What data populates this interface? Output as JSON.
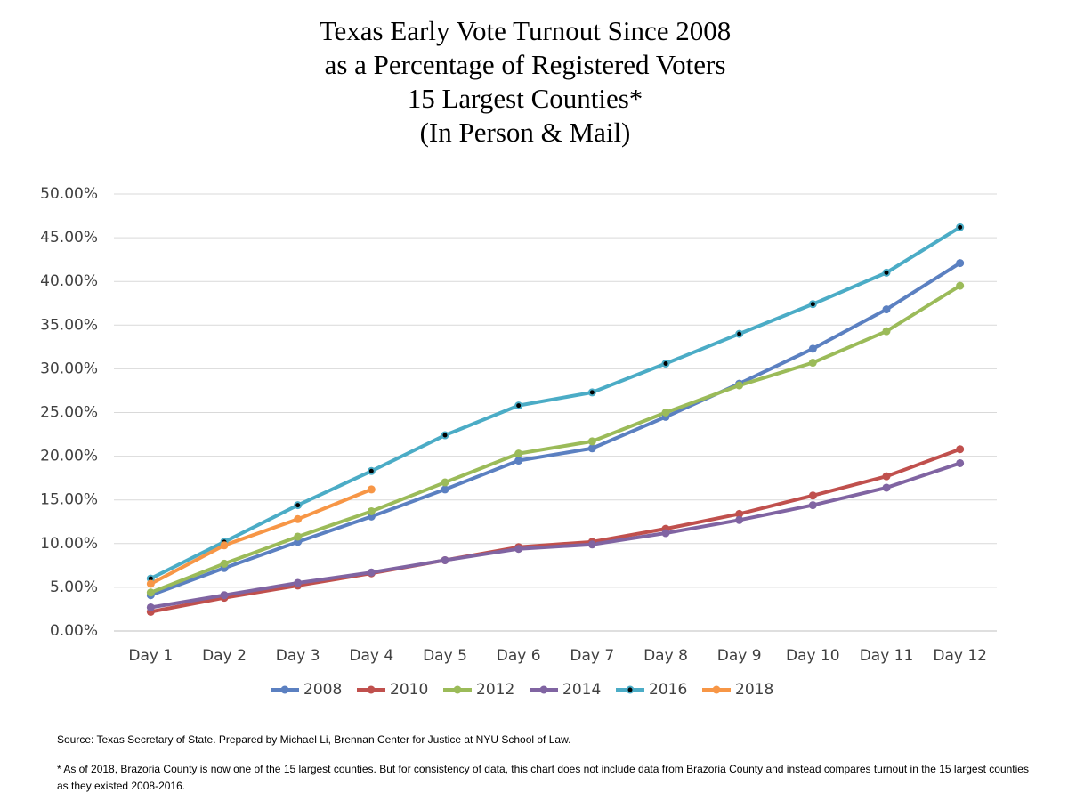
{
  "chart_data": {
    "type": "line",
    "title_lines": [
      "Texas Early Vote Turnout Since 2008",
      "as a Percentage of Registered Voters",
      "15 Largest Counties*",
      "(In Person & Mail)"
    ],
    "categories": [
      "Day 1",
      "Day 2",
      "Day 3",
      "Day 4",
      "Day 5",
      "Day 6",
      "Day 7",
      "Day 8",
      "Day 9",
      "Day 10",
      "Day 11",
      "Day 12"
    ],
    "series": [
      {
        "name": "2008",
        "color": "#5b80c1",
        "values": [
          4.1,
          7.2,
          10.2,
          13.1,
          16.2,
          19.5,
          20.9,
          24.5,
          28.3,
          32.3,
          36.8,
          42.1
        ]
      },
      {
        "name": "2010",
        "color": "#c0504d",
        "values": [
          2.2,
          3.8,
          5.2,
          6.6,
          8.1,
          9.6,
          10.2,
          11.7,
          13.4,
          15.5,
          17.7,
          20.8
        ]
      },
      {
        "name": "2012",
        "color": "#9bbb59",
        "values": [
          4.4,
          7.7,
          10.8,
          13.7,
          17.0,
          20.3,
          21.7,
          25.0,
          28.1,
          30.7,
          34.3,
          39.5
        ]
      },
      {
        "name": "2014",
        "color": "#8064a2",
        "values": [
          2.7,
          4.1,
          5.5,
          6.7,
          8.1,
          9.4,
          9.9,
          11.2,
          12.7,
          14.4,
          16.4,
          19.2
        ]
      },
      {
        "name": "2016",
        "color": "#4bacc6",
        "marker_color": "#000000",
        "values": [
          6.0,
          10.2,
          14.4,
          18.3,
          22.4,
          25.8,
          27.3,
          30.6,
          34.0,
          37.4,
          41.0,
          46.2
        ]
      },
      {
        "name": "2018",
        "color": "#f79646",
        "values": [
          5.4,
          9.8,
          12.8,
          16.2,
          null,
          null,
          null,
          null,
          null,
          null,
          null,
          null
        ]
      }
    ],
    "ylim": [
      0,
      50
    ],
    "yticks": [
      {
        "value": 0,
        "label": "0.00%"
      },
      {
        "value": 5,
        "label": "5.00%"
      },
      {
        "value": 10,
        "label": "10.00%"
      },
      {
        "value": 15,
        "label": "15.00%"
      },
      {
        "value": 20,
        "label": "20.00%"
      },
      {
        "value": 25,
        "label": "25.00%"
      },
      {
        "value": 30,
        "label": "30.00%"
      },
      {
        "value": 35,
        "label": "35.00%"
      },
      {
        "value": 40,
        "label": "40.00%"
      },
      {
        "value": 45,
        "label": "45.00%"
      },
      {
        "value": 50,
        "label": "50.00%"
      }
    ],
    "grid": true,
    "legend": "bottom",
    "notes": [
      "Source: Texas Secretary of State. Prepared by Michael Li, Brennan Center for Justice at NYU School of Law.",
      "* As of 2018, Brazoria County is now one of the 15 largest counties. But for consistency of data, this chart does not include data from Brazoria County and instead compares turnout in the 15 largest counties as they existed 2008-2016."
    ]
  }
}
